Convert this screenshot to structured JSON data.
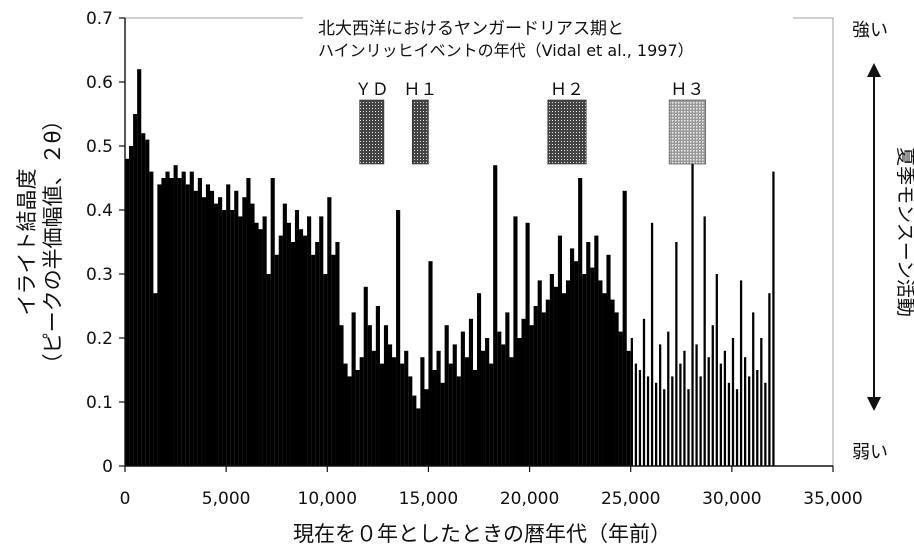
{
  "chart_data": {
    "type": "bar",
    "title": "北大西洋におけるヤンガードリアス期と",
    "subtitle": "ハインリッヒイベントの年代（Vidal et al., 1997）",
    "xlabel": "現在を０年としたときの暦年代（年前）",
    "ylabel_line1": "イライト結晶度",
    "ylabel_line2": "（ピークの半価幅値、２θ）",
    "right_label": "夏季モンスーン活動",
    "right_top": "強い",
    "right_bottom": "弱い",
    "xlim": [
      0,
      35000
    ],
    "ylim": [
      0,
      0.7
    ],
    "x_ticks": [
      "0",
      "5,000",
      "10,000",
      "15,000",
      "20,000",
      "25,000",
      "30,000",
      "35,000"
    ],
    "y_ticks": [
      "0",
      "0.1",
      "0.2",
      "0.3",
      "0.4",
      "0.5",
      "0.6",
      "0.7"
    ],
    "grid": false,
    "events": [
      {
        "label": "ＹＤ",
        "start": 11600,
        "end": 12800,
        "pattern": "dense"
      },
      {
        "label": "Ｈ１",
        "start": 14200,
        "end": 15000,
        "pattern": "dense"
      },
      {
        "label": "Ｈ２",
        "start": 20900,
        "end": 22800,
        "pattern": "dense"
      },
      {
        "label": "Ｈ３",
        "start": 26900,
        "end": 28700,
        "pattern": "light"
      }
    ],
    "series": [
      {
        "x": [
          0,
          200,
          400,
          600,
          800,
          1000,
          1200,
          1400,
          1600,
          1800,
          2000,
          2200,
          2400,
          2600,
          2800,
          3000,
          3200,
          3400,
          3600,
          3800,
          4000,
          4200,
          4400,
          4600,
          4800,
          5000,
          5200,
          5400,
          5600,
          5800,
          6000,
          6200,
          6400,
          6600,
          6800,
          7000,
          7200,
          7400,
          7600,
          7800,
          8000,
          8200,
          8400,
          8600,
          8800,
          9000,
          9200,
          9400,
          9600,
          9800,
          10000,
          10200,
          10400,
          10600,
          10800,
          11000,
          11200,
          11400,
          11600,
          11800,
          12000,
          12200,
          12400,
          12600,
          12800,
          13000,
          13200,
          13400,
          13600,
          13800,
          14000,
          14200,
          14400,
          14600,
          14800,
          15000,
          15200,
          15400,
          15600,
          15800,
          16000,
          16200,
          16400,
          16600,
          16800,
          17000,
          17200,
          17400,
          17600,
          17800,
          18000,
          18200,
          18400,
          18600,
          18800,
          19000,
          19200,
          19400,
          19600,
          19800,
          20000,
          20200,
          20400,
          20600,
          20800,
          21000,
          21200,
          21400,
          21600,
          21800,
          22000,
          22200,
          22400,
          22600,
          22800,
          23000,
          23200,
          23400,
          23600,
          23800,
          24000,
          24200,
          24400,
          24600,
          24800,
          25000,
          25200,
          25400,
          25600,
          25800,
          26000,
          26200,
          26400,
          26600,
          26800,
          27000,
          27200,
          27400,
          27600,
          27800,
          28000,
          28200,
          28400,
          28600,
          28800,
          29000,
          29200,
          29400,
          29600,
          29800,
          30000,
          30200,
          30400,
          30600,
          30800,
          31000,
          31200,
          31400,
          31600,
          31800,
          32000
        ],
        "values": [
          0.48,
          0.5,
          0.55,
          0.62,
          0.52,
          0.51,
          0.46,
          0.27,
          0.44,
          0.45,
          0.46,
          0.45,
          0.47,
          0.45,
          0.46,
          0.44,
          0.46,
          0.43,
          0.45,
          0.42,
          0.44,
          0.43,
          0.41,
          0.42,
          0.4,
          0.44,
          0.4,
          0.43,
          0.39,
          0.42,
          0.45,
          0.41,
          0.38,
          0.37,
          0.39,
          0.3,
          0.45,
          0.33,
          0.36,
          0.41,
          0.38,
          0.35,
          0.4,
          0.37,
          0.36,
          0.39,
          0.33,
          0.35,
          0.39,
          0.3,
          0.42,
          0.33,
          0.35,
          0.22,
          0.16,
          0.14,
          0.24,
          0.15,
          0.17,
          0.28,
          0.22,
          0.18,
          0.25,
          0.16,
          0.22,
          0.19,
          0.17,
          0.4,
          0.16,
          0.18,
          0.14,
          0.11,
          0.09,
          0.17,
          0.12,
          0.32,
          0.15,
          0.18,
          0.13,
          0.22,
          0.16,
          0.19,
          0.14,
          0.21,
          0.17,
          0.23,
          0.15,
          0.27,
          0.18,
          0.2,
          0.16,
          0.47,
          0.21,
          0.19,
          0.24,
          0.17,
          0.39,
          0.2,
          0.23,
          0.38,
          0.22,
          0.25,
          0.29,
          0.24,
          0.26,
          0.3,
          0.28,
          0.36,
          0.27,
          0.29,
          0.34,
          0.32,
          0.45,
          0.3,
          0.35,
          0.31,
          0.36,
          0.29,
          0.27,
          0.33,
          0.26,
          0.24,
          0.21,
          0.43,
          0.18,
          0.2,
          0.16,
          0.15,
          0.23,
          0.14,
          0.38,
          0.13,
          0.19,
          0.12,
          0.21,
          0.14,
          0.35,
          0.16,
          0.18,
          0.12,
          0.48,
          0.19,
          0.14,
          0.39,
          0.17,
          0.22,
          0.3,
          0.16,
          0.18,
          0.13,
          0.2,
          0.12,
          0.29,
          0.17,
          0.14,
          0.24,
          0.15,
          0.2,
          0.13,
          0.27,
          0.46
        ]
      }
    ]
  }
}
